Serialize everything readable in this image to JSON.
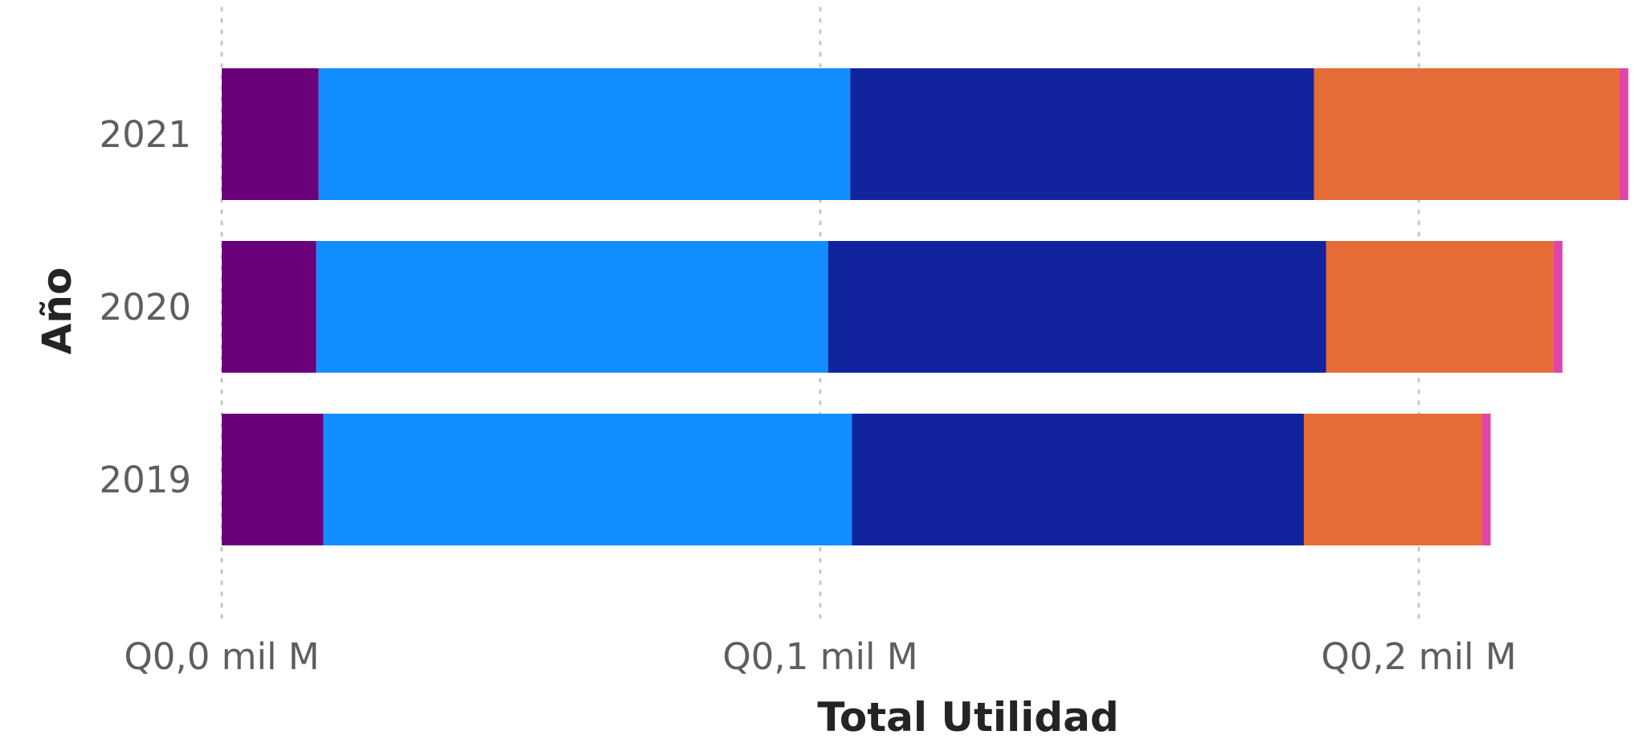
{
  "chart_data": {
    "type": "bar",
    "orientation": "horizontal",
    "stacked": true,
    "categories": [
      "2021",
      "2020",
      "2019"
    ],
    "xlabel": "Total Utilidad",
    "ylabel": "Año",
    "x_ticks": [
      {
        "value": 0.0,
        "label": "Q0,0 mil M"
      },
      {
        "value": 0.1,
        "label": "Q0,1 mil M"
      },
      {
        "value": 0.2,
        "label": "Q0,2 mil M"
      }
    ],
    "xlim": [
      0,
      0.235
    ],
    "grid": "vertical-dotted",
    "series": [
      {
        "color": "#6b007b",
        "values": [
          0.0162,
          0.0158,
          0.017
        ]
      },
      {
        "color": "#118dff",
        "values": [
          0.0888,
          0.0855,
          0.0883
        ]
      },
      {
        "color": "#12239e",
        "values": [
          0.0775,
          0.0832,
          0.0755
        ]
      },
      {
        "color": "#e66c37",
        "values": [
          0.051,
          0.038,
          0.0298
        ]
      },
      {
        "color": "#e044a7",
        "values": [
          0.0015,
          0.0015,
          0.0014
        ]
      }
    ]
  }
}
